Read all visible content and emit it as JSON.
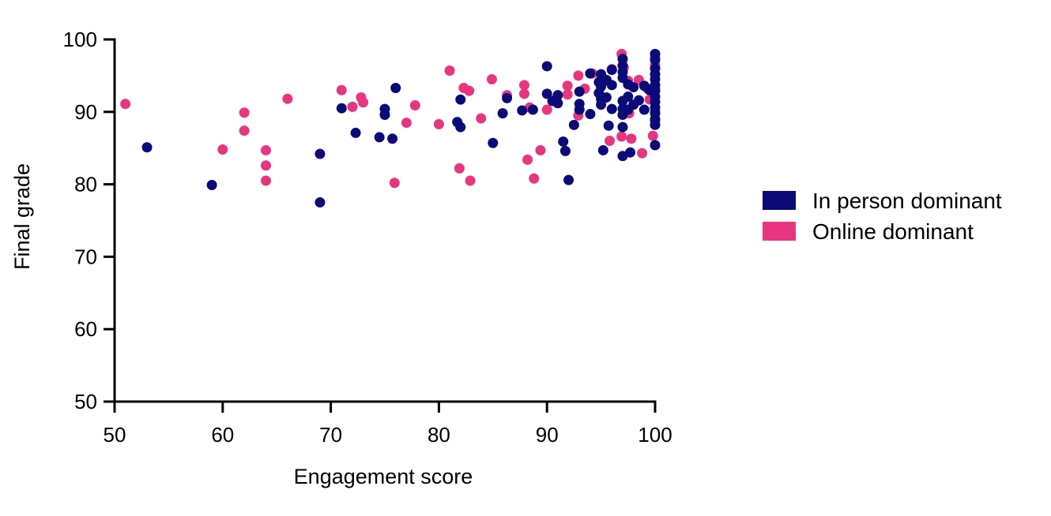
{
  "chart_data": {
    "type": "scatter",
    "title": "",
    "xlabel": "Engagement score",
    "ylabel": "Final grade",
    "xlim": [
      50,
      100
    ],
    "ylim": [
      50,
      100
    ],
    "xticks": [
      "50",
      "60",
      "70",
      "80",
      "90",
      "100"
    ],
    "yticks": [
      "50",
      "60",
      "70",
      "80",
      "90",
      "100"
    ],
    "grid": false,
    "legend_position": "right",
    "series": [
      {
        "name": "In person dominant",
        "color": "#0a0a78",
        "points": [
          [
            53,
            85.1
          ],
          [
            59,
            79.9
          ],
          [
            69,
            84.2
          ],
          [
            69,
            77.5
          ],
          [
            71,
            90.5
          ],
          [
            72.3,
            87.1
          ],
          [
            74.5,
            86.5
          ],
          [
            75,
            90.4
          ],
          [
            75,
            89.6
          ],
          [
            75.7,
            86.3
          ],
          [
            76,
            93.3
          ],
          [
            81.7,
            88.6
          ],
          [
            82,
            91.7
          ],
          [
            82,
            87.9
          ],
          [
            85,
            85.7
          ],
          [
            85.9,
            89.8
          ],
          [
            86.3,
            91.9
          ],
          [
            87.7,
            90.2
          ],
          [
            88.7,
            90.3
          ],
          [
            90,
            96.3
          ],
          [
            90,
            92.5
          ],
          [
            90.5,
            91.5
          ],
          [
            91,
            92.3
          ],
          [
            91,
            91.2
          ],
          [
            91.5,
            85.9
          ],
          [
            91.7,
            84.6
          ],
          [
            92,
            80.6
          ],
          [
            92.5,
            88.2
          ],
          [
            93,
            92.8
          ],
          [
            93,
            91.1
          ],
          [
            93,
            90.3
          ],
          [
            94,
            95.3
          ],
          [
            94,
            89.7
          ],
          [
            94.8,
            94.1
          ],
          [
            94.8,
            92.6
          ],
          [
            95,
            95.2
          ],
          [
            95,
            93.5
          ],
          [
            95,
            91.8
          ],
          [
            95,
            91.0
          ],
          [
            95.2,
            84.7
          ],
          [
            95.5,
            94.4
          ],
          [
            95.5,
            92.0
          ],
          [
            95.7,
            88.1
          ],
          [
            96,
            95.8
          ],
          [
            96,
            93.7
          ],
          [
            96,
            90.4
          ],
          [
            97,
            97.3
          ],
          [
            97,
            96.4
          ],
          [
            97,
            95.5
          ],
          [
            97,
            94.7
          ],
          [
            97,
            91.5
          ],
          [
            97,
            90.4
          ],
          [
            97,
            89.6
          ],
          [
            97,
            87.9
          ],
          [
            97,
            83.9
          ],
          [
            97.5,
            93.8
          ],
          [
            97.5,
            92.1
          ],
          [
            97.5,
            90.3
          ],
          [
            97.7,
            84.4
          ],
          [
            98,
            93.4
          ],
          [
            98,
            91.0
          ],
          [
            98.5,
            91.6
          ],
          [
            99,
            93.6
          ],
          [
            99,
            90.3
          ],
          [
            99.5,
            93.0
          ],
          [
            100,
            98.0
          ],
          [
            100,
            97.2
          ],
          [
            100,
            96.0
          ],
          [
            100,
            95.2
          ],
          [
            100,
            94.5
          ],
          [
            100,
            93.7
          ],
          [
            100,
            92.9
          ],
          [
            100,
            92.1
          ],
          [
            100,
            91.4
          ],
          [
            100,
            90.6
          ],
          [
            100,
            89.8
          ],
          [
            100,
            89.0
          ],
          [
            100,
            88.2
          ],
          [
            100,
            85.4
          ]
        ]
      },
      {
        "name": "Online dominant",
        "color": "#e8357f",
        "points": [
          [
            51,
            91.1
          ],
          [
            60,
            84.8
          ],
          [
            62,
            89.9
          ],
          [
            62,
            87.4
          ],
          [
            64,
            84.7
          ],
          [
            64,
            82.6
          ],
          [
            64,
            80.5
          ],
          [
            66,
            91.8
          ],
          [
            71,
            93.0
          ],
          [
            72,
            90.7
          ],
          [
            72.8,
            92.0
          ],
          [
            73,
            91.3
          ],
          [
            77,
            88.5
          ],
          [
            77.8,
            90.9
          ],
          [
            75.9,
            80.2
          ],
          [
            80,
            88.3
          ],
          [
            81,
            95.7
          ],
          [
            81.9,
            82.2
          ],
          [
            82.3,
            93.3
          ],
          [
            82.8,
            92.9
          ],
          [
            82.9,
            80.5
          ],
          [
            83.9,
            89.1
          ],
          [
            84.9,
            94.5
          ],
          [
            86.3,
            92.3
          ],
          [
            87.9,
            93.7
          ],
          [
            87.9,
            92.5
          ],
          [
            88.2,
            83.4
          ],
          [
            88.4,
            90.6
          ],
          [
            88.8,
            80.8
          ],
          [
            89.4,
            84.7
          ],
          [
            90,
            90.3
          ],
          [
            91.9,
            93.6
          ],
          [
            91.9,
            92.4
          ],
          [
            92.9,
            95.0
          ],
          [
            92.9,
            89.5
          ],
          [
            93.5,
            93.2
          ],
          [
            94.2,
            95.3
          ],
          [
            95.1,
            94.0
          ],
          [
            95.8,
            86.0
          ],
          [
            96,
            95.9
          ],
          [
            96.9,
            98.0
          ],
          [
            96.9,
            86.6
          ],
          [
            97.1,
            96.1
          ],
          [
            97.5,
            94.3
          ],
          [
            97.6,
            89.8
          ],
          [
            97.8,
            86.3
          ],
          [
            98.5,
            94.4
          ],
          [
            98.8,
            84.3
          ],
          [
            99.3,
            93.2
          ],
          [
            99.5,
            91.7
          ],
          [
            100,
            97.6
          ],
          [
            100,
            96.5
          ],
          [
            100,
            93.2
          ],
          [
            100,
            90.1
          ],
          [
            100,
            88.7
          ],
          [
            99.8,
            86.7
          ]
        ]
      }
    ]
  }
}
